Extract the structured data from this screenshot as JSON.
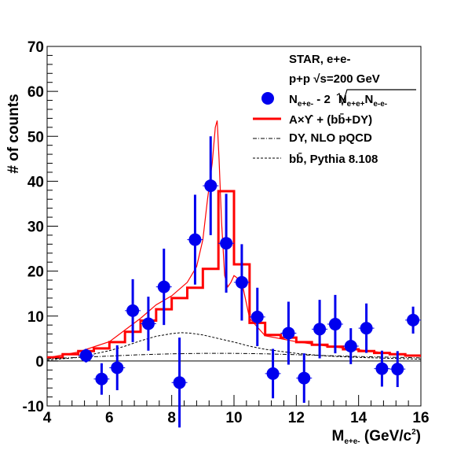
{
  "chart_data": {
    "type": "scatter",
    "xlabel": "M",
    "xlabel_sub": "e+e-",
    "xlabel_unit": " (GeV/c",
    "xlabel_sup": "2",
    "xlabel_close": ")",
    "ylabel": "# of counts",
    "xlim": [
      4,
      16
    ],
    "ylim": [
      -10,
      70
    ],
    "x_ticks": [
      4,
      6,
      8,
      10,
      12,
      14,
      16
    ],
    "x_tick_labels": [
      "4",
      "6",
      "8",
      "10",
      "12",
      "14",
      "16"
    ],
    "y_ticks": [
      -10,
      0,
      10,
      20,
      30,
      40,
      50,
      60,
      70
    ],
    "y_tick_labels": [
      "-10",
      "0",
      "10",
      "20",
      "30",
      "40",
      "50",
      "60",
      "70"
    ],
    "grid": false,
    "legend_position": "top-right",
    "legend": {
      "header1": "STAR, e+e-",
      "header2_a": "p+p ",
      "header2_b": "√s=200 GeV",
      "data_label_a": "N",
      "data_label_sub1": "e+e-",
      "data_label_b": " - 2",
      "data_label_c": "N",
      "data_label_sub2": "e+e+",
      "data_label_d": "N",
      "data_label_sub3": "e-e-",
      "fit_label": "A×ϒ + (bb̄+DY)",
      "dy_label": "DY, NLO pQCD",
      "bb_label": "bb̄, Pythia 8.108"
    },
    "series": [
      {
        "kind": "points",
        "color": "#0000ee",
        "x": [
          5.25,
          5.75,
          6.25,
          6.75,
          7.25,
          7.75,
          8.25,
          8.75,
          9.25,
          9.75,
          10.25,
          10.75,
          11.25,
          11.75,
          12.25,
          12.75,
          13.25,
          13.75,
          14.25,
          14.75,
          15.25,
          15.75
        ],
        "y": [
          1.2,
          -4,
          -1.5,
          11.2,
          8.3,
          16.5,
          -4.8,
          27,
          39,
          26.2,
          17.5,
          9.8,
          -2.8,
          6.2,
          -3.8,
          7.1,
          8.2,
          3.3,
          7.3,
          -1.7,
          -1.8,
          9.1
        ],
        "y_err": [
          1.5,
          3.5,
          5,
          7,
          6,
          8.5,
          10,
          10,
          11,
          11,
          8.5,
          6.5,
          5.5,
          7,
          5.5,
          6.5,
          6.5,
          4,
          5.5,
          4,
          4,
          3
        ]
      },
      {
        "kind": "step",
        "color": "#ff0000",
        "edges": [
          4,
          4.5,
          5,
          5.5,
          6,
          6.5,
          7,
          7.5,
          8,
          8.5,
          9,
          9.5,
          10,
          10.5,
          11,
          11.5,
          12,
          12.5,
          13,
          13.5,
          14,
          14.5,
          15,
          15.5,
          16
        ],
        "values": [
          0.8,
          1.5,
          2.2,
          2.8,
          4.2,
          6.5,
          9,
          11.5,
          14,
          16.3,
          20.5,
          37.8,
          21.5,
          8.5,
          5.8,
          5.2,
          4.2,
          3.6,
          3.2,
          2.6,
          2.2,
          1.8,
          1.5,
          1.2
        ]
      },
      {
        "kind": "curve",
        "color": "#ff0000",
        "x": [
          4,
          5,
          6,
          7,
          7.5,
          8,
          8.5,
          8.8,
          9.0,
          9.15,
          9.3,
          9.4,
          9.46,
          9.52,
          9.6,
          9.7,
          9.8,
          9.9,
          10.0,
          10.1,
          10.2,
          10.3,
          10.5,
          11,
          12,
          13,
          14,
          15,
          16
        ],
        "y": [
          0.7,
          2.0,
          4.3,
          9.5,
          12.5,
          14.5,
          17.5,
          21,
          27,
          36,
          44,
          52,
          53.5,
          45,
          31,
          19,
          16.5,
          17.5,
          19,
          18.5,
          17.8,
          16,
          9.5,
          5.6,
          4.3,
          3.3,
          2.5,
          1.7,
          1.0
        ]
      },
      {
        "kind": "curve",
        "color": "#000000",
        "dash": "dashdot",
        "x": [
          4,
          5,
          6,
          7,
          8,
          9,
          10,
          11,
          12,
          13,
          14,
          15,
          16
        ],
        "y": [
          0.5,
          0.8,
          1.1,
          1.4,
          1.6,
          1.7,
          1.7,
          1.6,
          1.4,
          1.2,
          1.0,
          0.85,
          0.7
        ]
      },
      {
        "kind": "curve",
        "color": "#000000",
        "dash": "dashed",
        "x": [
          4,
          5,
          6,
          6.5,
          7,
          7.5,
          8,
          8.3,
          8.6,
          9,
          9.5,
          10,
          10.5,
          11,
          12,
          13,
          14,
          15,
          16
        ],
        "y": [
          0.2,
          0.8,
          2.3,
          3.3,
          4.5,
          5.5,
          6.1,
          6.3,
          6.2,
          5.8,
          5.0,
          4.2,
          3.3,
          2.6,
          1.7,
          1.1,
          0.8,
          0.6,
          0.4
        ]
      }
    ]
  }
}
